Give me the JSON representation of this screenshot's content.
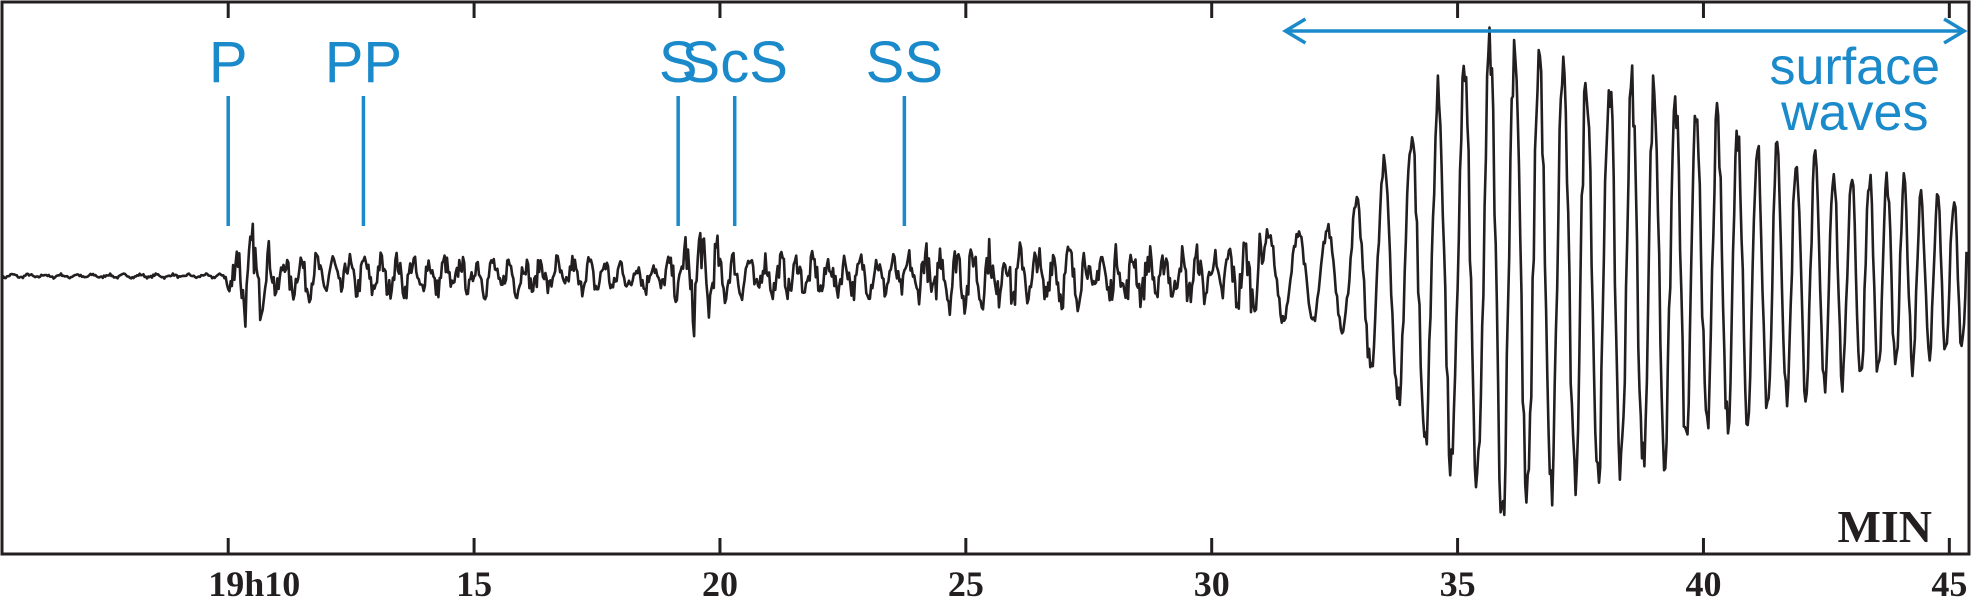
{
  "chart_data": {
    "type": "line",
    "x_axis": {
      "unit_label": "MIN",
      "range": [
        5.4,
        45.4
      ],
      "ticks": [
        {
          "value": 10,
          "label": "19h10"
        },
        {
          "value": 15,
          "label": "15"
        },
        {
          "value": 20,
          "label": "20"
        },
        {
          "value": 25,
          "label": "25"
        },
        {
          "value": 30,
          "label": "30"
        },
        {
          "value": 35,
          "label": "35"
        },
        {
          "value": 40,
          "label": "40"
        },
        {
          "value": 45,
          "label": "45"
        }
      ]
    },
    "y_axis": {
      "range": [
        -1,
        1
      ]
    },
    "grid": false,
    "phase_arrivals": [
      {
        "label": "P",
        "time": 10.0
      },
      {
        "label": "PP",
        "time": 12.75
      },
      {
        "label": "S",
        "time": 19.15
      },
      {
        "label": "ScS",
        "time": 20.3
      },
      {
        "label": "SS",
        "time": 23.75
      }
    ],
    "surface_waves": {
      "label_line1": "surface",
      "label_line2": "waves",
      "start": 31.5,
      "end": 45.3
    },
    "trace_envelope": [
      {
        "t": 5.4,
        "amp": 0.01
      },
      {
        "t": 9.9,
        "amp": 0.01
      },
      {
        "t": 10.0,
        "amp": 0.1
      },
      {
        "t": 10.4,
        "amp": 0.22
      },
      {
        "t": 11.0,
        "amp": 0.1
      },
      {
        "t": 19.0,
        "amp": 0.08
      },
      {
        "t": 19.5,
        "amp": 0.25
      },
      {
        "t": 20.2,
        "amp": 0.1
      },
      {
        "t": 23.7,
        "amp": 0.09
      },
      {
        "t": 24.3,
        "amp": 0.15
      },
      {
        "t": 30.0,
        "amp": 0.12
      },
      {
        "t": 31.0,
        "amp": 0.18
      },
      {
        "t": 32.6,
        "amp": 0.2
      },
      {
        "t": 33.5,
        "amp": 0.45
      },
      {
        "t": 34.8,
        "amp": 0.8
      },
      {
        "t": 36.0,
        "amp": 1.0
      },
      {
        "t": 37.5,
        "amp": 0.85
      },
      {
        "t": 39.0,
        "amp": 0.78
      },
      {
        "t": 40.5,
        "amp": 0.62
      },
      {
        "t": 42.0,
        "amp": 0.48
      },
      {
        "t": 43.5,
        "amp": 0.42
      },
      {
        "t": 45.3,
        "amp": 0.3
      }
    ],
    "colors": {
      "trace": "#231f20",
      "annotation": "#1a8acb",
      "frame": "#231f20"
    }
  }
}
